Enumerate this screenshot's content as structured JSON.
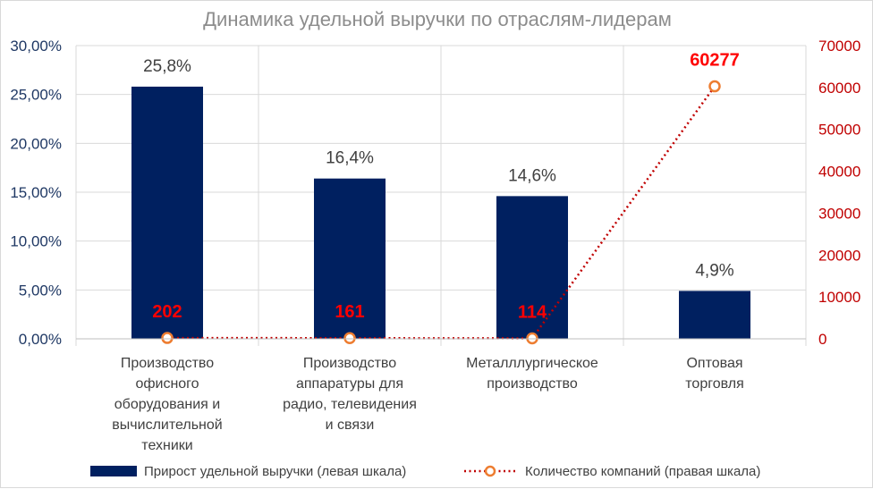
{
  "chart_data": {
    "type": "bar",
    "title": "Динамика удельной выручки по отраслям-лидерам",
    "categories": [
      [
        "Производство",
        "офисного",
        "оборудования и",
        "вычислительной",
        "техники"
      ],
      [
        "Производство",
        "аппаратуры для",
        "радио, телевидения",
        "и связи"
      ],
      [
        "Металллургическое",
        "производство"
      ],
      [
        "Оптовая",
        "торговля"
      ]
    ],
    "series": [
      {
        "name": "Прирост удельной выручки (левая шкала)",
        "type": "bar",
        "axis": "left",
        "values": [
          0.258,
          0.164,
          0.146,
          0.049
        ],
        "labels": [
          "25,8%",
          "16,4%",
          "14,6%",
          "4,9%"
        ],
        "color": "#002060"
      },
      {
        "name": "Количество компаний (правая шкала)",
        "type": "line",
        "axis": "right",
        "values": [
          202,
          161,
          114,
          60277
        ],
        "labels": [
          "202",
          "161",
          "114",
          "60277"
        ],
        "color": "#c00000",
        "marker_color": "#ed7d31",
        "label_color": "#ff0000"
      }
    ],
    "y_left": {
      "ylim": [
        0,
        0.3
      ],
      "ticks": [
        0,
        0.05,
        0.1,
        0.15,
        0.2,
        0.25,
        0.3
      ],
      "tick_labels": [
        "0,00%",
        "5,00%",
        "10,00%",
        "15,00%",
        "20,00%",
        "25,00%",
        "30,00%"
      ],
      "color": "#1f3864"
    },
    "y_right": {
      "ylim": [
        0,
        70000
      ],
      "ticks": [
        0,
        10000,
        20000,
        30000,
        40000,
        50000,
        60000,
        70000
      ],
      "tick_labels": [
        "0",
        "10000",
        "20000",
        "30000",
        "40000",
        "50000",
        "60000",
        "70000"
      ],
      "color": "#c00000"
    },
    "grid": true,
    "legend_position": "bottom"
  }
}
